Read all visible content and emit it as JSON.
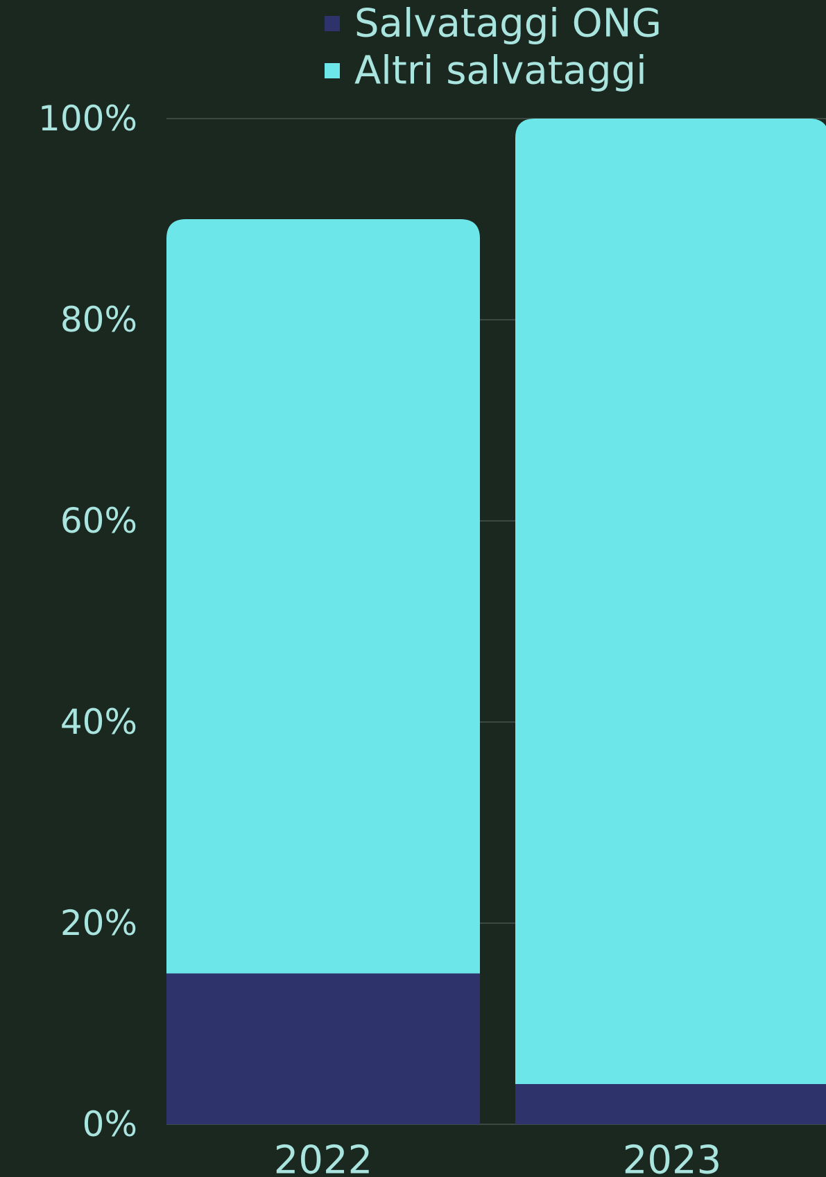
{
  "chart_data": {
    "type": "bar",
    "stacked": true,
    "categories": [
      "2022",
      "2023"
    ],
    "series": [
      {
        "name": "Salvataggi ONG",
        "values": [
          15,
          4
        ],
        "color": "#2f336b"
      },
      {
        "name": "Altri salvataggi",
        "values": [
          75,
          96
        ],
        "color": "#6ce6e8"
      }
    ],
    "y_ticks": [
      "0%",
      "20%",
      "40%",
      "60%",
      "80%",
      "100%"
    ],
    "ylim": [
      0,
      100
    ],
    "grid": true,
    "legend_position": "top-center",
    "colors": {
      "background": "#1b2820",
      "text": "#a9e4df",
      "gridline": "#3c4a43"
    }
  }
}
